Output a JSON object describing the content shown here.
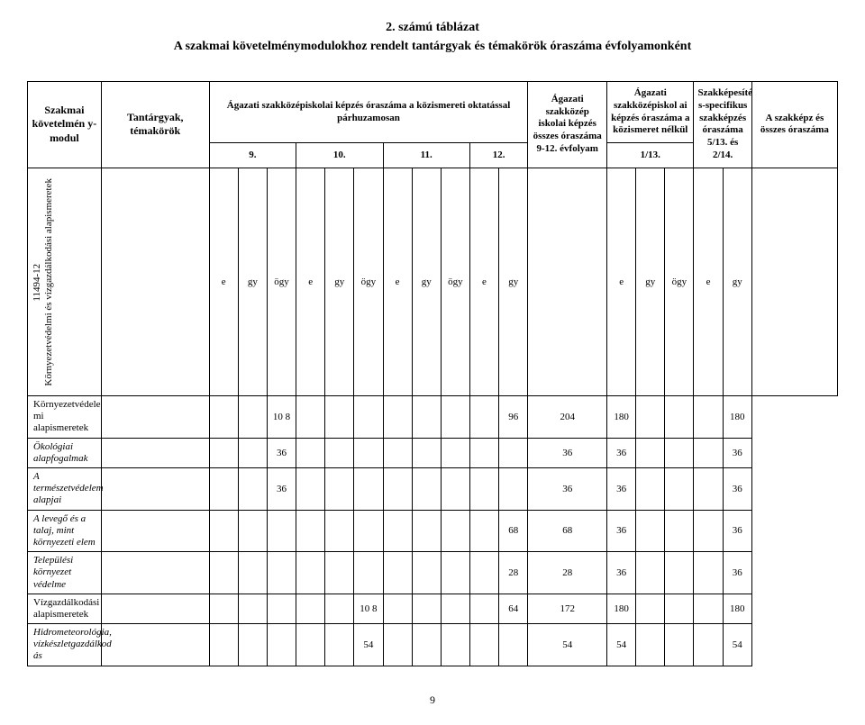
{
  "title": {
    "line1": "2. számú táblázat",
    "line2": "A szakmai követelménymodulokhoz rendelt tantárgyak és témakörök óraszáma évfolyamonként"
  },
  "headers": {
    "szakmai": "Szakmai követelmén y-modul",
    "tantargy": "Tantárgyak, témakörök",
    "agazati_oktat": "Ágazati szakközépiskolai képzés óraszáma a közismereti oktatással párhuzamosan",
    "c9": "9.",
    "c10": "10.",
    "c11": "11.",
    "c12": "12.",
    "agazati_osszes": "Ágazati szakközép iskolai képzés összes óraszáma 9-12. évfolyam",
    "agazati_nelkul": "Ágazati szakközépiskol ai képzés óraszáma a közismeret nélkül",
    "c113": "1/13.",
    "szakkepesito": "Szakképesíté s-specifikus szakképzés óraszáma 5/13. és 2/14.",
    "a_szakkepz": "A szakképz és összes óraszáma",
    "e": "e",
    "gy": "gy",
    "ogy": "ögy"
  },
  "module": {
    "id": "11494-12",
    "name": "Környezetvédelmi és vízgazdálkodási alapismeretek"
  },
  "rows": [
    {
      "label": "Környezetvédele mi alapismeretek",
      "italic": false,
      "r9": [
        "",
        "",
        "",
        "10 8",
        "",
        ""
      ],
      "r11": [
        "",
        "",
        ""
      ],
      "r12": [
        "",
        ""
      ],
      "osszes": "96",
      "n113": [
        "204",
        "180",
        ""
      ],
      "spec": [
        "",
        ""
      ],
      "tot": "180"
    },
    {
      "label": "Ökológiai alapfogalmak",
      "italic": true,
      "r9": [
        "",
        "",
        "",
        "36",
        "",
        ""
      ],
      "r11": [
        "",
        "",
        ""
      ],
      "r12": [
        "",
        ""
      ],
      "osszes": "",
      "n113": [
        "36",
        "36",
        ""
      ],
      "spec": [
        "",
        ""
      ],
      "tot": "36"
    },
    {
      "label": "A természetvédelem alapjai",
      "italic": true,
      "r9": [
        "",
        "",
        "",
        "36",
        "",
        ""
      ],
      "r11": [
        "",
        "",
        ""
      ],
      "r12": [
        "",
        ""
      ],
      "osszes": "",
      "n113": [
        "36",
        "36",
        ""
      ],
      "spec": [
        "",
        ""
      ],
      "tot": "36"
    },
    {
      "label": "A levegő és a talaj, mint környezeti elem",
      "italic": true,
      "r9": [
        "",
        "",
        "",
        "",
        "",
        ""
      ],
      "r11": [
        "",
        "",
        ""
      ],
      "r12": [
        "",
        ""
      ],
      "osszes": "68",
      "n113": [
        "68",
        "36",
        ""
      ],
      "spec": [
        "",
        ""
      ],
      "tot": "36"
    },
    {
      "label": "Települési környezet védelme",
      "italic": true,
      "r9": [
        "",
        "",
        "",
        "",
        "",
        ""
      ],
      "r11": [
        "",
        "",
        ""
      ],
      "r12": [
        "",
        ""
      ],
      "osszes": "28",
      "n113": [
        "28",
        "36",
        ""
      ],
      "spec": [
        "",
        ""
      ],
      "tot": "36"
    },
    {
      "label": "Vízgazdálkodási alapismeretek",
      "italic": false,
      "r9": [
        "",
        "",
        "",
        "",
        "",
        ""
      ],
      "r11": [
        "10 8",
        "",
        ""
      ],
      "r12": [
        "",
        ""
      ],
      "osszes": "64",
      "n113": [
        "172",
        "180",
        ""
      ],
      "spec": [
        "",
        ""
      ],
      "tot": "180"
    },
    {
      "label": "Hidrometeorológia, vízkészletgazdálkod ás",
      "italic": true,
      "r9": [
        "",
        "",
        "",
        "",
        "",
        ""
      ],
      "r11": [
        "54",
        "",
        ""
      ],
      "r12": [
        "",
        ""
      ],
      "osszes": "",
      "n113": [
        "54",
        "54",
        ""
      ],
      "spec": [
        "",
        ""
      ],
      "tot": "54"
    }
  ],
  "pageNumber": "9"
}
